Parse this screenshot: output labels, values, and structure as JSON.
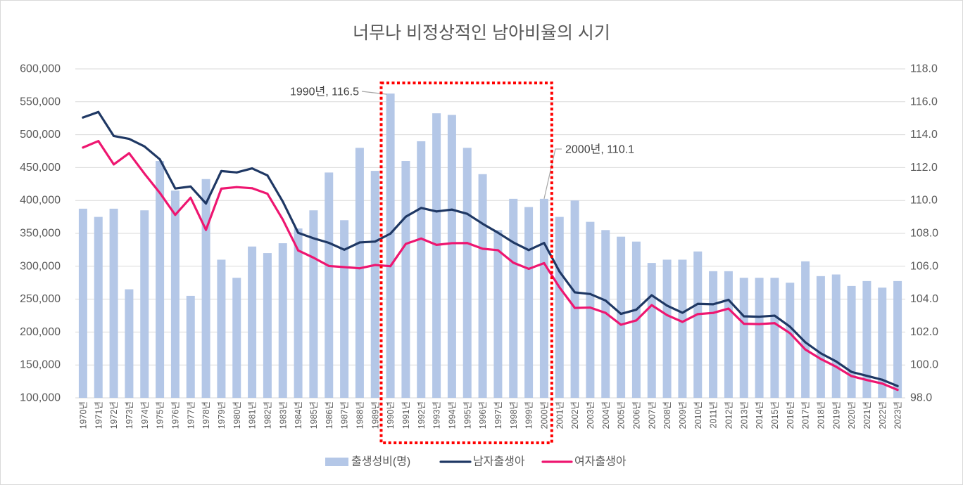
{
  "chart_data": {
    "type": "bar",
    "title": "너무나 비정상적인 남아비율의 시기",
    "categories": [
      "1970년",
      "1971년",
      "1972년",
      "1973년",
      "1974년",
      "1975년",
      "1976년",
      "1977년",
      "1978년",
      "1979년",
      "1980년",
      "1981년",
      "1982년",
      "1983년",
      "1984년",
      "1985년",
      "1986년",
      "1987년",
      "1988년",
      "1989년",
      "1990년",
      "1991년",
      "1992년",
      "1993년",
      "1994년",
      "1995년",
      "1996년",
      "1997년",
      "1998년",
      "1999년",
      "2000년",
      "2001년",
      "2002년",
      "2003년",
      "2004년",
      "2005년",
      "2006년",
      "2007년",
      "2008년",
      "2009년",
      "2010년",
      "2011년",
      "2012년",
      "2013년",
      "2014년",
      "2015년",
      "2016년",
      "2017년",
      "2018년",
      "2019년",
      "2020년",
      "2021년",
      "2022년",
      "2023년"
    ],
    "series": [
      {
        "name": "출생성비(명)",
        "type": "bar",
        "axis": "right",
        "color": "#B4C7E7",
        "values": [
          109.5,
          109.0,
          109.5,
          104.6,
          109.4,
          112.4,
          110.6,
          104.2,
          111.3,
          106.4,
          105.3,
          107.2,
          106.8,
          107.4,
          108.3,
          109.4,
          111.7,
          108.8,
          113.2,
          111.8,
          116.5,
          112.4,
          113.6,
          115.3,
          115.2,
          113.2,
          111.6,
          108.2,
          110.1,
          109.6,
          110.1,
          109.0,
          110.0,
          108.7,
          108.2,
          107.8,
          107.5,
          106.2,
          106.4,
          106.4,
          106.9,
          105.7,
          105.7,
          105.3,
          105.3,
          105.3,
          105.0,
          106.3,
          105.4,
          105.5,
          104.8,
          105.1,
          104.7,
          105.1
        ]
      },
      {
        "name": "남자출생아",
        "type": "line",
        "axis": "left",
        "color": "#1F3864",
        "values": [
          526100,
          534500,
          498000,
          493600,
          482100,
          462500,
          418200,
          421200,
          395400,
          444700,
          442600,
          448800,
          438100,
          398300,
          350800,
          342500,
          335600,
          325100,
          336200,
          337500,
          349600,
          375300,
          388600,
          383300,
          386100,
          379700,
          364600,
          351000,
          336200,
          324600,
          335400,
          292000,
          260300,
          257800,
          247900,
          227600,
          234000,
          255900,
          240200,
          229300,
          242900,
          242200,
          249000,
          223900,
          223300,
          224900,
          208100,
          184400,
          167700,
          155400,
          139400,
          133500,
          127500,
          117900
        ]
      },
      {
        "name": "여자출생아",
        "type": "line",
        "axis": "left",
        "color": "#EE1670",
        "values": [
          480500,
          490300,
          454800,
          471900,
          440700,
          411500,
          378100,
          404200,
          355300,
          418000,
          420300,
          418600,
          410200,
          370900,
          324000,
          313000,
          300400,
          298700,
          296900,
          301900,
          300100,
          334000,
          342100,
          332500,
          335100,
          335300,
          326600,
          324400,
          305400,
          296100,
          304700,
          267900,
          236600,
          237200,
          229100,
          211100,
          217700,
          240900,
          225700,
          215500,
          227300,
          229100,
          235600,
          212600,
          212100,
          213500,
          198200,
          173400,
          159100,
          147300,
          133000,
          127000,
          121700,
          112100
        ]
      }
    ],
    "y_left": {
      "range": [
        100000,
        600000
      ],
      "ticks": [
        "100,000",
        "150,000",
        "200,000",
        "250,000",
        "300,000",
        "350,000",
        "400,000",
        "450,000",
        "500,000",
        "550,000",
        "600,000"
      ]
    },
    "y_right": {
      "range": [
        98,
        118
      ],
      "ticks": [
        "98.0",
        "100.0",
        "102.0",
        "104.0",
        "106.0",
        "108.0",
        "110.0",
        "112.0",
        "114.0",
        "116.0",
        "118.0"
      ]
    },
    "grid": true,
    "legend": "bottom",
    "annotations": [
      {
        "text": "1990년, 116.5",
        "index": 20,
        "series_index": 0
      },
      {
        "text": "2000년, 110.1",
        "index": 30,
        "series_index": 0
      }
    ],
    "highlight": {
      "from_index": 20,
      "to_index": 30,
      "color": "#FF0000"
    }
  }
}
